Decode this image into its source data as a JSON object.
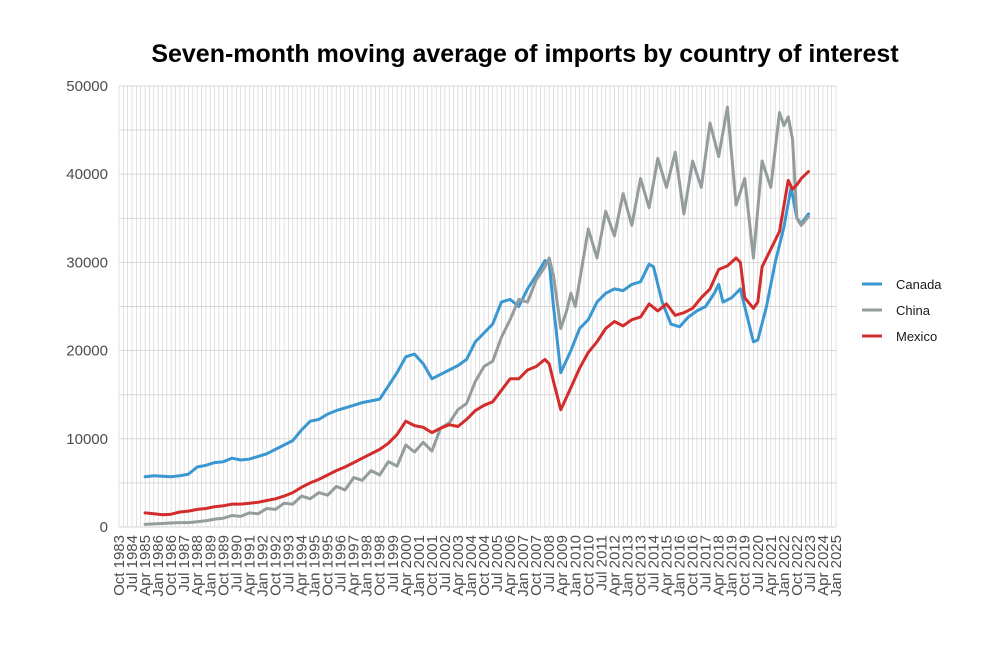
{
  "chart_data": {
    "type": "line",
    "title": "Seven-month moving average of imports by country of interest",
    "xlabel": "",
    "ylabel": "",
    "ylim": [
      0,
      50000
    ],
    "yticks": [
      0,
      10000,
      20000,
      30000,
      40000,
      50000
    ],
    "xlim": [
      "1983-10",
      "2025-01"
    ],
    "xtick_labels": [
      "Oct 1983",
      "Jul 1984",
      "Apr 1985",
      "Jan 1986",
      "Oct 1986",
      "Jul 1987",
      "Apr 1988",
      "Jan 1989",
      "Oct 1989",
      "Jul 1990",
      "Apr 1991",
      "Jan 1992",
      "Oct 1992",
      "Jul 1993",
      "Apr 1994",
      "Jan 1995",
      "Oct 1995",
      "Jul 1996",
      "Apr 1997",
      "Jan 1998",
      "Oct 1998",
      "Jul 1999",
      "Apr 2000",
      "Jan 2001",
      "Oct 2001",
      "Jul 2002",
      "Apr 2003",
      "Jan 2004",
      "Oct 2004",
      "Jul 2005",
      "Apr 2006",
      "Jan 2007",
      "Oct 2007",
      "Jul 2008",
      "Apr 2009",
      "Jan 2010",
      "Oct 2010",
      "Jul 2011",
      "Apr 2012",
      "Jan 2013",
      "Oct 2013",
      "Jul 2014",
      "Apr 2015",
      "Jan 2016",
      "Oct 2016",
      "Jul 2017",
      "Apr 2018",
      "Jan 2019",
      "Oct 2019",
      "Jul 2020",
      "Apr 2021",
      "Jan 2022",
      "Oct 2022",
      "Jul 2023",
      "Apr 2024",
      "Jan 2025"
    ],
    "grid": true,
    "legend_position": "right",
    "series": [
      {
        "name": "Canada",
        "color": "#3a97d1",
        "points": [
          [
            "1985-04",
            5700
          ],
          [
            "1985-10",
            5800
          ],
          [
            "1986-04",
            5750
          ],
          [
            "1986-10",
            5700
          ],
          [
            "1987-04",
            5800
          ],
          [
            "1987-10",
            6000
          ],
          [
            "1988-04",
            6800
          ],
          [
            "1988-10",
            7000
          ],
          [
            "1989-04",
            7300
          ],
          [
            "1989-10",
            7400
          ],
          [
            "1990-04",
            7800
          ],
          [
            "1990-10",
            7600
          ],
          [
            "1991-04",
            7700
          ],
          [
            "1991-10",
            8000
          ],
          [
            "1992-04",
            8300
          ],
          [
            "1992-10",
            8800
          ],
          [
            "1993-04",
            9300
          ],
          [
            "1993-10",
            9800
          ],
          [
            "1994-04",
            11000
          ],
          [
            "1994-10",
            12000
          ],
          [
            "1995-04",
            12200
          ],
          [
            "1995-10",
            12800
          ],
          [
            "1996-04",
            13200
          ],
          [
            "1996-10",
            13500
          ],
          [
            "1997-04",
            13800
          ],
          [
            "1997-10",
            14100
          ],
          [
            "1998-04",
            14300
          ],
          [
            "1998-10",
            14500
          ],
          [
            "1999-04",
            16000
          ],
          [
            "1999-10",
            17500
          ],
          [
            "2000-04",
            19300
          ],
          [
            "2000-10",
            19600
          ],
          [
            "2001-04",
            18500
          ],
          [
            "2001-10",
            16800
          ],
          [
            "2002-04",
            17300
          ],
          [
            "2002-10",
            17800
          ],
          [
            "2003-04",
            18300
          ],
          [
            "2003-10",
            19000
          ],
          [
            "2004-04",
            21000
          ],
          [
            "2004-10",
            22000
          ],
          [
            "2005-04",
            23000
          ],
          [
            "2005-10",
            25500
          ],
          [
            "2006-04",
            25800
          ],
          [
            "2006-10",
            25000
          ],
          [
            "2007-04",
            27000
          ],
          [
            "2007-10",
            28500
          ],
          [
            "2008-04",
            30200
          ],
          [
            "2008-07",
            30000
          ],
          [
            "2008-10",
            25000
          ],
          [
            "2009-03",
            17500
          ],
          [
            "2009-10",
            20000
          ],
          [
            "2010-04",
            22500
          ],
          [
            "2010-10",
            23500
          ],
          [
            "2011-04",
            25500
          ],
          [
            "2011-10",
            26500
          ],
          [
            "2012-04",
            27000
          ],
          [
            "2012-10",
            26800
          ],
          [
            "2013-04",
            27500
          ],
          [
            "2013-10",
            27800
          ],
          [
            "2014-04",
            29800
          ],
          [
            "2014-07",
            29500
          ],
          [
            "2015-01",
            25500
          ],
          [
            "2015-07",
            23000
          ],
          [
            "2016-01",
            22700
          ],
          [
            "2016-07",
            23800
          ],
          [
            "2017-01",
            24500
          ],
          [
            "2017-07",
            25000
          ],
          [
            "2018-01",
            26500
          ],
          [
            "2018-04",
            27500
          ],
          [
            "2018-07",
            25500
          ],
          [
            "2019-01",
            26000
          ],
          [
            "2019-07",
            27000
          ],
          [
            "2019-10",
            25000
          ],
          [
            "2020-04",
            21000
          ],
          [
            "2020-07",
            21200
          ],
          [
            "2021-01",
            25000
          ],
          [
            "2021-07",
            30000
          ],
          [
            "2022-01",
            34000
          ],
          [
            "2022-06",
            38500
          ],
          [
            "2022-10",
            35000
          ],
          [
            "2023-01",
            34400
          ],
          [
            "2023-06",
            35500
          ]
        ]
      },
      {
        "name": "China",
        "color": "#959c9e",
        "points": [
          [
            "1985-04",
            300
          ],
          [
            "1985-10",
            350
          ],
          [
            "1986-04",
            400
          ],
          [
            "1986-10",
            450
          ],
          [
            "1987-04",
            500
          ],
          [
            "1987-10",
            500
          ],
          [
            "1988-04",
            600
          ],
          [
            "1988-10",
            700
          ],
          [
            "1989-04",
            900
          ],
          [
            "1989-10",
            1000
          ],
          [
            "1990-04",
            1300
          ],
          [
            "1990-10",
            1200
          ],
          [
            "1991-04",
            1600
          ],
          [
            "1991-10",
            1500
          ],
          [
            "1992-04",
            2100
          ],
          [
            "1992-10",
            2000
          ],
          [
            "1993-04",
            2700
          ],
          [
            "1993-10",
            2600
          ],
          [
            "1994-04",
            3500
          ],
          [
            "1994-10",
            3200
          ],
          [
            "1995-04",
            3900
          ],
          [
            "1995-10",
            3600
          ],
          [
            "1996-04",
            4600
          ],
          [
            "1996-10",
            4200
          ],
          [
            "1997-04",
            5600
          ],
          [
            "1997-10",
            5300
          ],
          [
            "1998-04",
            6400
          ],
          [
            "1998-10",
            5900
          ],
          [
            "1999-04",
            7400
          ],
          [
            "1999-10",
            6900
          ],
          [
            "2000-04",
            9300
          ],
          [
            "2000-10",
            8500
          ],
          [
            "2001-04",
            9600
          ],
          [
            "2001-10",
            8600
          ],
          [
            "2002-04",
            11200
          ],
          [
            "2002-10",
            11800
          ],
          [
            "2003-04",
            13300
          ],
          [
            "2003-10",
            14000
          ],
          [
            "2004-04",
            16500
          ],
          [
            "2004-10",
            18200
          ],
          [
            "2005-04",
            18800
          ],
          [
            "2005-10",
            21500
          ],
          [
            "2006-04",
            23500
          ],
          [
            "2006-10",
            25800
          ],
          [
            "2007-04",
            25500
          ],
          [
            "2007-10",
            28000
          ],
          [
            "2008-04",
            29500
          ],
          [
            "2008-07",
            30500
          ],
          [
            "2008-10",
            28500
          ],
          [
            "2009-03",
            22500
          ],
          [
            "2009-07",
            24500
          ],
          [
            "2009-10",
            26500
          ],
          [
            "2010-01",
            25000
          ],
          [
            "2010-10",
            33800
          ],
          [
            "2011-04",
            30500
          ],
          [
            "2011-10",
            35800
          ],
          [
            "2012-04",
            33000
          ],
          [
            "2012-10",
            37800
          ],
          [
            "2013-04",
            34200
          ],
          [
            "2013-10",
            39500
          ],
          [
            "2014-04",
            36200
          ],
          [
            "2014-10",
            41800
          ],
          [
            "2015-04",
            38500
          ],
          [
            "2015-10",
            42500
          ],
          [
            "2016-04",
            35500
          ],
          [
            "2016-10",
            41500
          ],
          [
            "2017-04",
            38500
          ],
          [
            "2017-10",
            45800
          ],
          [
            "2018-04",
            42000
          ],
          [
            "2018-10",
            47600
          ],
          [
            "2019-04",
            36500
          ],
          [
            "2019-10",
            39500
          ],
          [
            "2020-04",
            30500
          ],
          [
            "2020-10",
            41500
          ],
          [
            "2021-04",
            38500
          ],
          [
            "2021-10",
            47000
          ],
          [
            "2022-01",
            45500
          ],
          [
            "2022-04",
            46500
          ],
          [
            "2022-07",
            44000
          ],
          [
            "2022-10",
            35000
          ],
          [
            "2023-01",
            34200
          ],
          [
            "2023-06",
            35200
          ]
        ]
      },
      {
        "name": "Mexico",
        "color": "#d22c2c",
        "points": [
          [
            "1985-04",
            1600
          ],
          [
            "1985-10",
            1500
          ],
          [
            "1986-04",
            1400
          ],
          [
            "1986-10",
            1450
          ],
          [
            "1987-04",
            1700
          ],
          [
            "1987-10",
            1800
          ],
          [
            "1988-04",
            2000
          ],
          [
            "1988-10",
            2100
          ],
          [
            "1989-04",
            2300
          ],
          [
            "1989-10",
            2400
          ],
          [
            "1990-04",
            2600
          ],
          [
            "1990-10",
            2600
          ],
          [
            "1991-04",
            2700
          ],
          [
            "1991-10",
            2800
          ],
          [
            "1992-04",
            3000
          ],
          [
            "1992-10",
            3200
          ],
          [
            "1993-04",
            3500
          ],
          [
            "1993-10",
            3900
          ],
          [
            "1994-04",
            4500
          ],
          [
            "1994-10",
            5000
          ],
          [
            "1995-04",
            5400
          ],
          [
            "1995-10",
            5900
          ],
          [
            "1996-04",
            6400
          ],
          [
            "1996-10",
            6800
          ],
          [
            "1997-04",
            7300
          ],
          [
            "1997-10",
            7800
          ],
          [
            "1998-04",
            8300
          ],
          [
            "1998-10",
            8800
          ],
          [
            "1999-04",
            9500
          ],
          [
            "1999-10",
            10500
          ],
          [
            "2000-04",
            12000
          ],
          [
            "2000-10",
            11500
          ],
          [
            "2001-04",
            11300
          ],
          [
            "2001-10",
            10700
          ],
          [
            "2002-04",
            11200
          ],
          [
            "2002-10",
            11600
          ],
          [
            "2003-04",
            11400
          ],
          [
            "2003-10",
            12200
          ],
          [
            "2004-04",
            13200
          ],
          [
            "2004-10",
            13800
          ],
          [
            "2005-04",
            14200
          ],
          [
            "2005-10",
            15500
          ],
          [
            "2006-04",
            16800
          ],
          [
            "2006-10",
            16800
          ],
          [
            "2007-04",
            17800
          ],
          [
            "2007-10",
            18200
          ],
          [
            "2008-04",
            19000
          ],
          [
            "2008-07",
            18500
          ],
          [
            "2008-10",
            16500
          ],
          [
            "2009-03",
            13300
          ],
          [
            "2009-10",
            15800
          ],
          [
            "2010-04",
            18000
          ],
          [
            "2010-10",
            19800
          ],
          [
            "2011-04",
            21000
          ],
          [
            "2011-10",
            22500
          ],
          [
            "2012-04",
            23300
          ],
          [
            "2012-10",
            22800
          ],
          [
            "2013-04",
            23500
          ],
          [
            "2013-10",
            23800
          ],
          [
            "2014-04",
            25300
          ],
          [
            "2014-10",
            24500
          ],
          [
            "2015-04",
            25300
          ],
          [
            "2015-10",
            24000
          ],
          [
            "2016-04",
            24300
          ],
          [
            "2016-10",
            24800
          ],
          [
            "2017-04",
            26000
          ],
          [
            "2017-10",
            27000
          ],
          [
            "2018-04",
            29200
          ],
          [
            "2018-10",
            29600
          ],
          [
            "2019-04",
            30500
          ],
          [
            "2019-07",
            30000
          ],
          [
            "2019-10",
            26000
          ],
          [
            "2020-04",
            24800
          ],
          [
            "2020-07",
            25500
          ],
          [
            "2020-10",
            29500
          ],
          [
            "2021-04",
            31500
          ],
          [
            "2021-10",
            33500
          ],
          [
            "2022-04",
            39300
          ],
          [
            "2022-07",
            38300
          ],
          [
            "2022-10",
            38800
          ],
          [
            "2023-01",
            39500
          ],
          [
            "2023-06",
            40300
          ]
        ]
      }
    ]
  }
}
